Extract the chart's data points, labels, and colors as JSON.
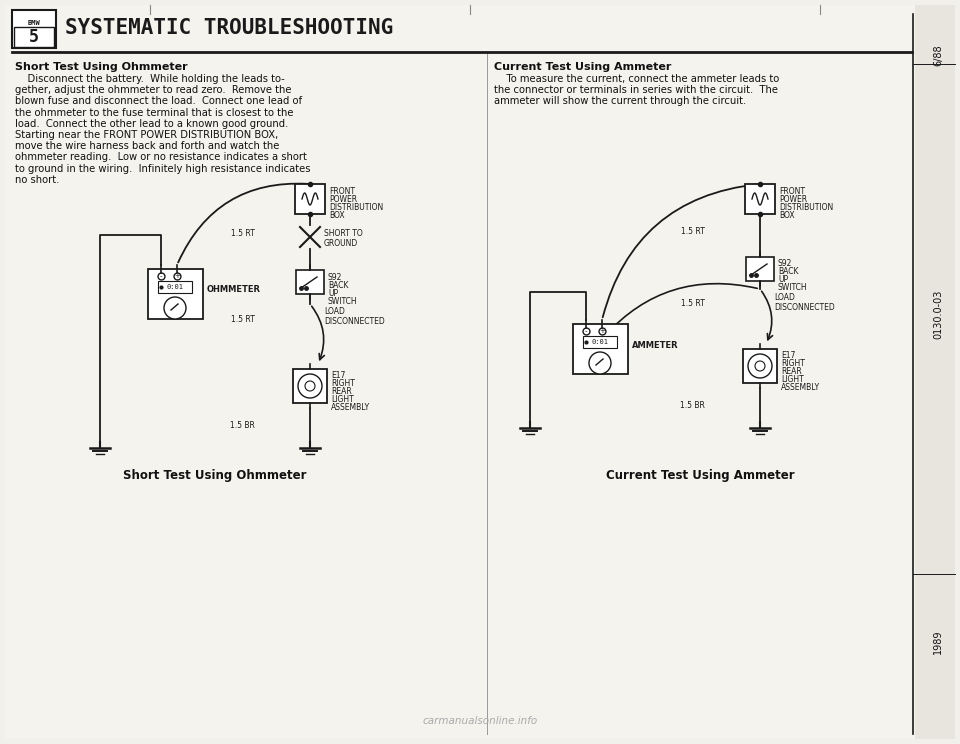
{
  "bg_color": "#f2f0eb",
  "title_text": "SYSTEMATIC TROUBLESHOOTING",
  "left_heading": "Short Test Using Ohmmeter",
  "left_body_lines": [
    "    Disconnect the battery.  While holding the leads to-",
    "gether, adjust the ohmmeter to read zero.  Remove the",
    "blown fuse and disconnect the load.  Connect one lead of",
    "the ohmmeter to the fuse terminal that is closest to the",
    "load.  Connect the other lead to a known good ground.",
    "Starting near the FRONT POWER DISTRIBUTION BOX,",
    "move the wire harness back and forth and watch the",
    "ohmmeter reading.  Low or no resistance indicates a short",
    "to ground in the wiring.  Infinitely high resistance indicates",
    "no short."
  ],
  "right_heading": "Current Test Using Ammeter",
  "right_body_lines": [
    "    To measure the current, connect the ammeter leads to",
    "the connector or terminals in series with the circuit.  The",
    "ammeter will show the current through the circuit."
  ],
  "left_caption": "Short Test Using Ohmmeter",
  "right_caption": "Current Test Using Ammeter",
  "side_top": "6/88",
  "side_mid": "0130.0-03",
  "side_bot": "1989",
  "watermark": "carmanualsonline.info",
  "line_color": "#1a1a1a",
  "text_color": "#111111"
}
